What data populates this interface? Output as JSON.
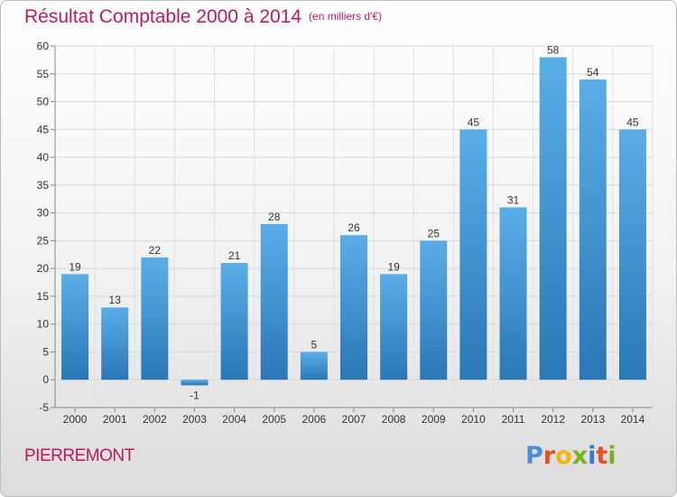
{
  "title": "Résultat Comptable 2000 à 2014",
  "subtitle": "(en milliers d'€)",
  "commune": "PIERREMONT",
  "logo": {
    "letters": [
      "P",
      "r",
      "o",
      "x",
      "i",
      "t",
      "i"
    ],
    "colors": [
      "#4a90d9",
      "#e94e1b",
      "#f2b705",
      "#7ab317",
      "#2a7fd4",
      "#e94e1b",
      "#7ab317"
    ]
  },
  "colors": {
    "bar_top": "#5aaee8",
    "bar_bottom": "#2a77b5",
    "title": "#c2185b"
  },
  "chart_data": {
    "type": "bar",
    "categories": [
      "2000",
      "2001",
      "2002",
      "2003",
      "2004",
      "2005",
      "2006",
      "2007",
      "2008",
      "2009",
      "2010",
      "2011",
      "2012",
      "2013",
      "2014"
    ],
    "values": [
      19,
      13,
      22,
      -1,
      21,
      28,
      5,
      26,
      19,
      25,
      45,
      31,
      58,
      54,
      45
    ],
    "labels": [
      "19",
      "13",
      "22",
      "-1",
      "21",
      "28",
      "5",
      "26",
      "19",
      "25",
      "45",
      "31",
      "58",
      "54",
      "45"
    ],
    "title": "Résultat Comptable 2000 à 2014",
    "subtitle": "(en milliers d'€)",
    "ylim": [
      -5,
      60
    ],
    "yticks": [
      -5,
      0,
      5,
      10,
      15,
      20,
      25,
      30,
      35,
      40,
      45,
      50,
      55,
      60
    ],
    "grid": true
  }
}
